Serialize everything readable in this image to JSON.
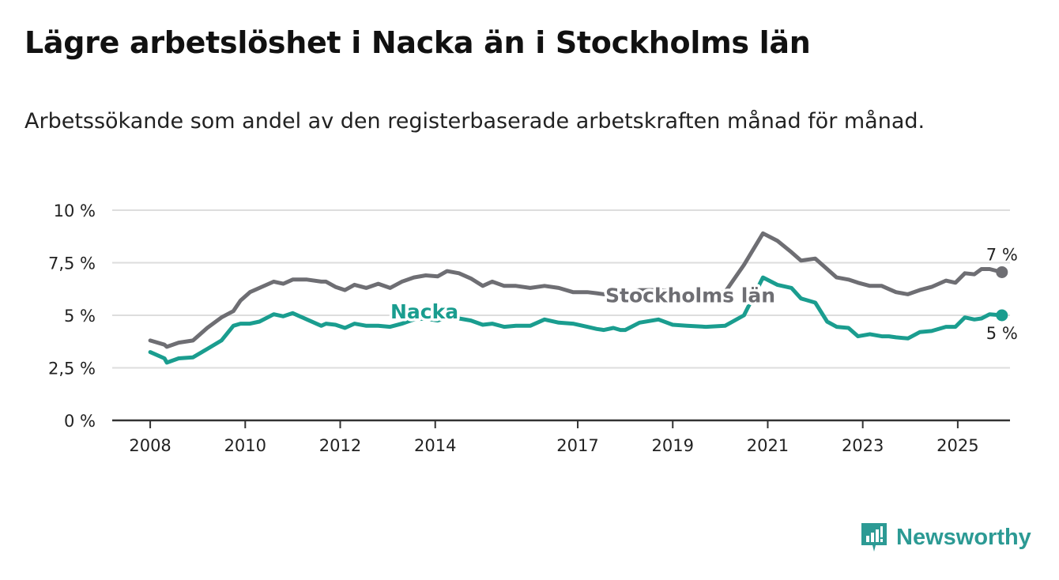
{
  "title": "Lägre arbetslöshet i Nacka än i Stockholms län",
  "subtitle": "Arbetssökande som andel av den registerbaserade arbetskraften månad för månad.",
  "brand": {
    "name": "Newsworthy",
    "color": "#2c9a94",
    "icon": "newsworthy-chart-icon"
  },
  "chart_data": {
    "type": "line",
    "title": "Lägre arbetslöshet i Nacka än i Stockholms län",
    "subtitle": "Arbetssökande som andel av den registerbaserade arbetskraften månad för månad.",
    "xlabel": "",
    "ylabel": "",
    "xlim": [
      2007.2,
      2026.1
    ],
    "ylim": [
      0,
      10
    ],
    "x_ticks": [
      2008,
      2010,
      2012,
      2014,
      2017,
      2019,
      2021,
      2023,
      2025
    ],
    "x_tick_labels": [
      "2008",
      "2010",
      "2012",
      "2014",
      "2017",
      "2019",
      "2021",
      "2023",
      "2025"
    ],
    "y_ticks": [
      0,
      2.5,
      5,
      7.5,
      10
    ],
    "y_tick_labels": [
      "0 %",
      "2,5 %",
      "5 %",
      "7,5 %",
      "10 %"
    ],
    "grid": "horizontal",
    "legend": "inline labels on lines",
    "series": [
      {
        "name": "Stockholms län",
        "color": "#6e6e73",
        "end_label": "7 %",
        "points": [
          [
            2008.0,
            3.8
          ],
          [
            2008.3,
            3.6
          ],
          [
            2008.35,
            3.5
          ],
          [
            2008.6,
            3.7
          ],
          [
            2008.9,
            3.8
          ],
          [
            2009.2,
            4.4
          ],
          [
            2009.5,
            4.9
          ],
          [
            2009.75,
            5.2
          ],
          [
            2009.9,
            5.7
          ],
          [
            2010.1,
            6.1
          ],
          [
            2010.3,
            6.3
          ],
          [
            2010.6,
            6.6
          ],
          [
            2010.8,
            6.5
          ],
          [
            2011.0,
            6.7
          ],
          [
            2011.3,
            6.7
          ],
          [
            2011.6,
            6.6
          ],
          [
            2011.7,
            6.6
          ],
          [
            2011.9,
            6.35
          ],
          [
            2012.1,
            6.2
          ],
          [
            2012.3,
            6.45
          ],
          [
            2012.55,
            6.3
          ],
          [
            2012.8,
            6.5
          ],
          [
            2013.05,
            6.3
          ],
          [
            2013.3,
            6.6
          ],
          [
            2013.55,
            6.8
          ],
          [
            2013.8,
            6.9
          ],
          [
            2014.05,
            6.85
          ],
          [
            2014.25,
            7.1
          ],
          [
            2014.5,
            7.0
          ],
          [
            2014.75,
            6.75
          ],
          [
            2015.0,
            6.4
          ],
          [
            2015.2,
            6.6
          ],
          [
            2015.45,
            6.4
          ],
          [
            2015.7,
            6.4
          ],
          [
            2016.0,
            6.3
          ],
          [
            2016.3,
            6.4
          ],
          [
            2016.6,
            6.3
          ],
          [
            2016.9,
            6.1
          ],
          [
            2017.2,
            6.1
          ],
          [
            2017.4,
            6.05
          ],
          [
            2017.55,
            6.0
          ],
          [
            2017.75,
            6.15
          ],
          [
            2017.9,
            6.0
          ],
          [
            2018.0,
            6.05
          ],
          [
            2018.3,
            6.2
          ],
          [
            2018.7,
            6.2
          ],
          [
            2019.0,
            6.15
          ],
          [
            2019.3,
            6.0
          ],
          [
            2019.7,
            6.05
          ],
          [
            2020.1,
            6.1
          ],
          [
            2020.5,
            7.4
          ],
          [
            2020.9,
            8.9
          ],
          [
            2021.2,
            8.55
          ],
          [
            2021.5,
            8.0
          ],
          [
            2021.7,
            7.6
          ],
          [
            2022.0,
            7.7
          ],
          [
            2022.25,
            7.2
          ],
          [
            2022.45,
            6.8
          ],
          [
            2022.7,
            6.7
          ],
          [
            2022.9,
            6.55
          ],
          [
            2023.15,
            6.4
          ],
          [
            2023.4,
            6.4
          ],
          [
            2023.55,
            6.25
          ],
          [
            2023.7,
            6.1
          ],
          [
            2023.95,
            6.0
          ],
          [
            2024.2,
            6.2
          ],
          [
            2024.45,
            6.35
          ],
          [
            2024.75,
            6.65
          ],
          [
            2024.95,
            6.55
          ],
          [
            2025.15,
            7.0
          ],
          [
            2025.35,
            6.95
          ],
          [
            2025.5,
            7.2
          ],
          [
            2025.67,
            7.2
          ],
          [
            2025.93,
            7.05
          ]
        ]
      },
      {
        "name": "Nacka",
        "color": "#1a9d8f",
        "end_label": "5 %",
        "points": [
          [
            2008.0,
            3.25
          ],
          [
            2008.3,
            2.95
          ],
          [
            2008.35,
            2.75
          ],
          [
            2008.6,
            2.95
          ],
          [
            2008.9,
            3.0
          ],
          [
            2009.2,
            3.4
          ],
          [
            2009.5,
            3.8
          ],
          [
            2009.75,
            4.5
          ],
          [
            2009.9,
            4.6
          ],
          [
            2010.1,
            4.6
          ],
          [
            2010.3,
            4.7
          ],
          [
            2010.6,
            5.05
          ],
          [
            2010.8,
            4.95
          ],
          [
            2011.0,
            5.1
          ],
          [
            2011.3,
            4.8
          ],
          [
            2011.6,
            4.5
          ],
          [
            2011.7,
            4.6
          ],
          [
            2011.9,
            4.55
          ],
          [
            2012.1,
            4.4
          ],
          [
            2012.3,
            4.6
          ],
          [
            2012.55,
            4.5
          ],
          [
            2012.8,
            4.5
          ],
          [
            2013.05,
            4.45
          ],
          [
            2013.3,
            4.6
          ],
          [
            2013.55,
            4.8
          ],
          [
            2013.8,
            4.85
          ],
          [
            2014.05,
            4.75
          ],
          [
            2014.25,
            4.9
          ],
          [
            2014.5,
            4.85
          ],
          [
            2014.75,
            4.75
          ],
          [
            2015.0,
            4.55
          ],
          [
            2015.2,
            4.6
          ],
          [
            2015.45,
            4.45
          ],
          [
            2015.7,
            4.5
          ],
          [
            2016.0,
            4.5
          ],
          [
            2016.3,
            4.8
          ],
          [
            2016.6,
            4.65
          ],
          [
            2016.9,
            4.6
          ],
          [
            2017.2,
            4.45
          ],
          [
            2017.4,
            4.35
          ],
          [
            2017.55,
            4.3
          ],
          [
            2017.75,
            4.4
          ],
          [
            2017.9,
            4.3
          ],
          [
            2018.0,
            4.3
          ],
          [
            2018.3,
            4.65
          ],
          [
            2018.7,
            4.8
          ],
          [
            2019.0,
            4.55
          ],
          [
            2019.3,
            4.5
          ],
          [
            2019.7,
            4.45
          ],
          [
            2020.1,
            4.5
          ],
          [
            2020.5,
            5.0
          ],
          [
            2020.9,
            6.8
          ],
          [
            2021.2,
            6.45
          ],
          [
            2021.5,
            6.3
          ],
          [
            2021.7,
            5.8
          ],
          [
            2022.0,
            5.6
          ],
          [
            2022.25,
            4.7
          ],
          [
            2022.45,
            4.45
          ],
          [
            2022.7,
            4.4
          ],
          [
            2022.9,
            4.0
          ],
          [
            2023.15,
            4.1
          ],
          [
            2023.4,
            4.0
          ],
          [
            2023.55,
            4.0
          ],
          [
            2023.7,
            3.95
          ],
          [
            2023.95,
            3.9
          ],
          [
            2024.2,
            4.2
          ],
          [
            2024.45,
            4.25
          ],
          [
            2024.75,
            4.45
          ],
          [
            2024.95,
            4.45
          ],
          [
            2025.15,
            4.9
          ],
          [
            2025.35,
            4.8
          ],
          [
            2025.5,
            4.85
          ],
          [
            2025.67,
            5.05
          ],
          [
            2025.93,
            5.0
          ]
        ]
      }
    ]
  }
}
